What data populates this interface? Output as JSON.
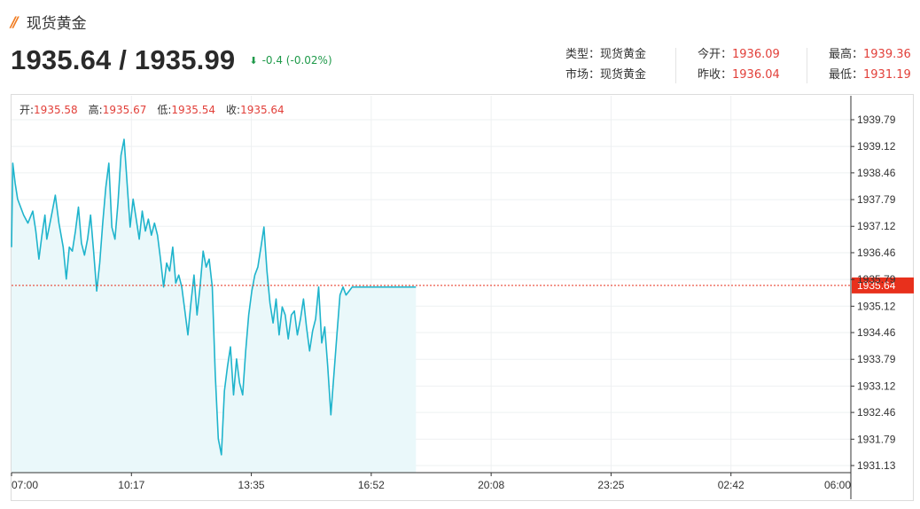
{
  "header": {
    "title": "现货黄金",
    "price_pair": "1935.64 / 1935.99",
    "change_text": "-0.4 (-0.02%)",
    "change_color": "#1f9a4a",
    "arrow_icon": "arrow-down-icon"
  },
  "info": {
    "type_label": "类型：",
    "type_value": "现货黄金",
    "market_label": "市场：",
    "market_value": "现货黄金",
    "open_label": "今开：",
    "open_value": "1936.09",
    "prev_close_label": "昨收：",
    "prev_close_value": "1936.04",
    "high_label": "最高：",
    "high_value": "1939.36",
    "low_label": "最低：",
    "low_value": "1931.19"
  },
  "ohlc": {
    "open_label": "开:",
    "open_value": "1935.58",
    "high_label": "高:",
    "high_value": "1935.67",
    "low_label": "低:",
    "low_value": "1935.54",
    "close_label": "收:",
    "close_value": "1935.64"
  },
  "colors": {
    "line": "#1fb4cc",
    "area": "#eaf8fa",
    "current_price": "#e8301c",
    "accent": "#f07c22"
  },
  "chart_data": {
    "type": "area",
    "x_ticks": [
      "07:00",
      "10:17",
      "13:35",
      "16:52",
      "20:08",
      "23:25",
      "02:42",
      "06:00"
    ],
    "y_ticks": [
      "1939.79",
      "1939.12",
      "1938.46",
      "1937.79",
      "1937.12",
      "1936.46",
      "1935.79",
      "1935.12",
      "1934.46",
      "1933.79",
      "1933.12",
      "1932.46",
      "1931.79",
      "1931.13"
    ],
    "ylim": [
      1930.8,
      1940.3
    ],
    "xlim_minutes": [
      0,
      1380
    ],
    "current_price": 1935.64,
    "current_price_label": "1935.64",
    "grid": true,
    "series": [
      {
        "x_minutes": [
          0,
          2,
          6,
          10,
          15,
          20,
          27,
          35,
          40,
          45,
          50,
          55,
          58,
          62,
          67,
          72,
          78,
          85,
          90,
          95,
          100,
          105,
          110,
          115,
          120,
          125,
          130,
          135,
          140,
          145,
          150,
          155,
          160,
          165,
          170,
          175,
          180,
          185,
          190,
          195,
          200,
          205,
          210,
          215,
          220,
          225,
          230,
          235,
          240,
          245,
          250,
          255,
          260,
          265,
          270,
          275,
          280,
          285,
          290,
          295,
          300,
          305,
          310,
          315,
          320,
          325,
          330,
          335,
          340,
          345,
          350,
          355,
          360,
          365,
          370,
          375,
          380,
          385,
          390,
          395,
          400,
          405,
          410,
          415,
          420,
          425,
          430,
          435,
          440,
          445,
          450,
          455,
          460,
          465,
          470,
          475,
          480,
          485,
          490,
          495,
          500,
          505,
          510,
          515,
          520,
          525,
          530,
          535,
          540,
          545,
          550,
          555,
          560,
          565,
          570,
          575,
          580,
          585,
          590,
          595,
          600,
          605,
          610,
          615,
          620,
          625,
          630,
          635,
          640,
          645,
          650,
          655,
          660,
          665
        ],
        "values": [
          1936.6,
          1938.7,
          1938.2,
          1937.8,
          1937.6,
          1937.4,
          1937.2,
          1937.5,
          1937.0,
          1936.3,
          1936.9,
          1937.4,
          1936.8,
          1937.1,
          1937.5,
          1937.9,
          1937.2,
          1936.6,
          1935.8,
          1936.6,
          1936.5,
          1937.0,
          1937.6,
          1936.7,
          1936.4,
          1936.8,
          1937.4,
          1936.5,
          1935.5,
          1936.2,
          1937.2,
          1938.1,
          1938.7,
          1937.1,
          1936.8,
          1937.7,
          1938.9,
          1939.3,
          1938.2,
          1937.1,
          1937.8,
          1937.3,
          1936.8,
          1937.5,
          1937.0,
          1937.3,
          1936.9,
          1937.2,
          1936.9,
          1936.3,
          1935.6,
          1936.2,
          1936.0,
          1936.6,
          1935.7,
          1935.9,
          1935.6,
          1935.0,
          1934.4,
          1935.2,
          1935.9,
          1934.9,
          1935.6,
          1936.5,
          1936.1,
          1936.3,
          1935.6,
          1933.4,
          1931.8,
          1931.4,
          1933.0,
          1933.6,
          1934.1,
          1932.9,
          1933.8,
          1933.2,
          1932.9,
          1934.0,
          1934.9,
          1935.5,
          1935.9,
          1936.1,
          1936.6,
          1937.1,
          1936.0,
          1935.2,
          1934.7,
          1935.3,
          1934.4,
          1935.1,
          1934.9,
          1934.3,
          1934.9,
          1935.0,
          1934.4,
          1934.8,
          1935.3,
          1934.6,
          1934.0,
          1934.5,
          1934.8,
          1935.6,
          1934.2,
          1934.6,
          1933.6,
          1932.4,
          1933.4,
          1934.4,
          1935.4,
          1935.6,
          1935.4,
          1935.5,
          1935.6,
          1935.6,
          1935.6,
          1935.6,
          1935.6,
          1935.6,
          1935.6,
          1935.6,
          1935.6,
          1935.6,
          1935.6,
          1935.6,
          1935.6,
          1935.6,
          1935.6,
          1935.6,
          1935.6,
          1935.6,
          1935.6,
          1935.6,
          1935.6,
          1935.6
        ]
      }
    ]
  }
}
